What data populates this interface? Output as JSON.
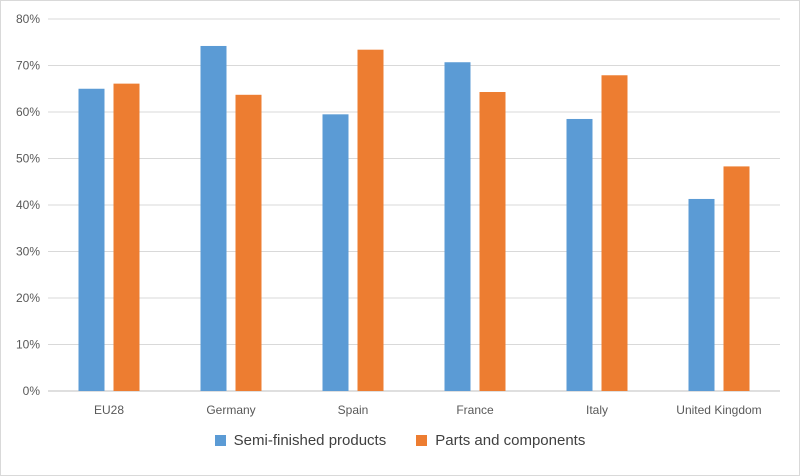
{
  "chart_data": {
    "type": "bar",
    "categories": [
      "EU28",
      "Germany",
      "Spain",
      "France",
      "Italy",
      "United Kingdom"
    ],
    "series": [
      {
        "name": "Semi-finished products",
        "color": "#5B9BD5",
        "values": [
          0.65,
          0.742,
          0.595,
          0.707,
          0.585,
          0.413
        ]
      },
      {
        "name": "Parts and components",
        "color": "#ED7D31",
        "values": [
          0.661,
          0.637,
          0.734,
          0.643,
          0.679,
          0.483
        ]
      }
    ],
    "y_ticks": [
      "0%",
      "10%",
      "20%",
      "30%",
      "40%",
      "50%",
      "60%",
      "70%",
      "80%"
    ],
    "ylim": [
      0,
      0.8
    ],
    "y_format": "percent",
    "grid": true,
    "legend_position": "bottom",
    "title": "",
    "xlabel": "",
    "ylabel": ""
  }
}
